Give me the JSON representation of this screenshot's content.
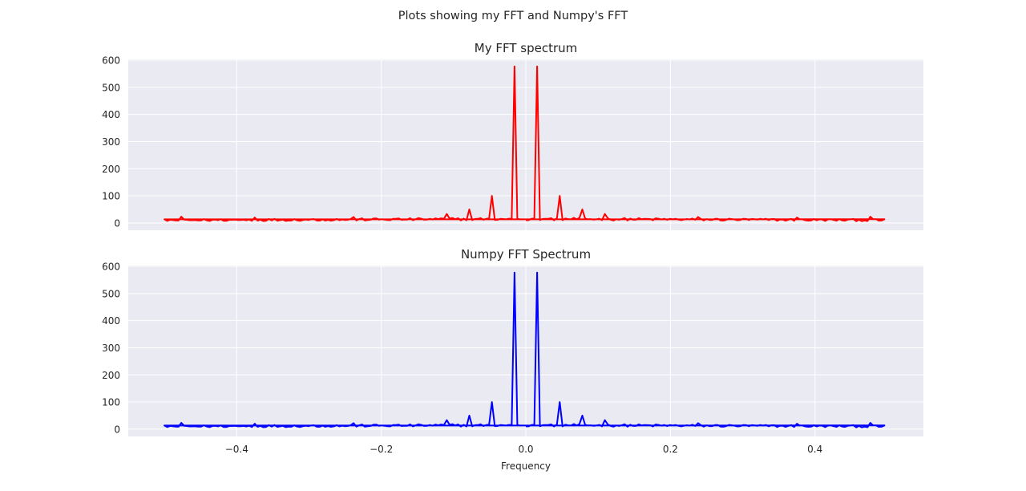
{
  "suptitle": "Plots showing my FFT and Numpy's FFT",
  "colors": {
    "axes_bg": "#eaeaf2",
    "grid": "#ffffff",
    "series_top": "#ff0000",
    "series_bottom": "#0000ff"
  },
  "chart_data": [
    {
      "type": "line",
      "title": "My FFT spectrum",
      "xlabel": "",
      "ylabel": "",
      "xlim": [
        -0.55,
        0.55
      ],
      "ylim": [
        -27,
        603
      ],
      "xticks": [
        -0.4,
        -0.2,
        0.0,
        0.2,
        0.4
      ],
      "xtick_labels": [
        "−0.4",
        "−0.2",
        "0.0",
        "0.2",
        "0.4"
      ],
      "xtick_labels_visible": false,
      "yticks": [
        0,
        100,
        200,
        300,
        400,
        500,
        600
      ],
      "ytick_labels": [
        "0",
        "100",
        "200",
        "300",
        "400",
        "500",
        "600"
      ],
      "grid": true,
      "series": [
        {
          "color": "#ff0000",
          "baseline_max_at_edge": 14,
          "baseline_min_at_edge": 6,
          "peaks": [
            {
              "x": -0.4766,
              "y": 23
            },
            {
              "x": -0.3766,
              "y": 20
            },
            {
              "x": -0.2398,
              "y": 22
            },
            {
              "x": -0.1094,
              "y": 33
            },
            {
              "x": -0.0781,
              "y": 50
            },
            {
              "x": -0.0469,
              "y": 100
            },
            {
              "x": -0.0156,
              "y": 577
            },
            {
              "x": 0.0156,
              "y": 577
            },
            {
              "x": 0.0469,
              "y": 100
            },
            {
              "x": 0.0781,
              "y": 50
            },
            {
              "x": 0.1094,
              "y": 33
            },
            {
              "x": 0.2398,
              "y": 22
            },
            {
              "x": 0.3766,
              "y": 20
            },
            {
              "x": 0.4766,
              "y": 23
            }
          ]
        }
      ]
    },
    {
      "type": "line",
      "title": "Numpy FFT Spectrum",
      "xlabel": "Frequency",
      "ylabel": "",
      "xlim": [
        -0.55,
        0.55
      ],
      "ylim": [
        -27,
        603
      ],
      "xticks": [
        -0.4,
        -0.2,
        0.0,
        0.2,
        0.4
      ],
      "xtick_labels": [
        "−0.4",
        "−0.2",
        "0.0",
        "0.2",
        "0.4"
      ],
      "xtick_labels_visible": true,
      "yticks": [
        0,
        100,
        200,
        300,
        400,
        500,
        600
      ],
      "ytick_labels": [
        "0",
        "100",
        "200",
        "300",
        "400",
        "500",
        "600"
      ],
      "grid": true,
      "series": [
        {
          "color": "#0000ff",
          "baseline_max_at_edge": 14,
          "baseline_min_at_edge": 6,
          "peaks": [
            {
              "x": -0.4766,
              "y": 23
            },
            {
              "x": -0.3766,
              "y": 20
            },
            {
              "x": -0.2398,
              "y": 22
            },
            {
              "x": -0.1094,
              "y": 33
            },
            {
              "x": -0.0781,
              "y": 50
            },
            {
              "x": -0.0469,
              "y": 100
            },
            {
              "x": -0.0156,
              "y": 577
            },
            {
              "x": 0.0156,
              "y": 577
            },
            {
              "x": 0.0469,
              "y": 100
            },
            {
              "x": 0.0781,
              "y": 50
            },
            {
              "x": 0.1094,
              "y": 33
            },
            {
              "x": 0.2398,
              "y": 22
            },
            {
              "x": 0.3766,
              "y": 20
            },
            {
              "x": 0.4766,
              "y": 23
            }
          ]
        }
      ]
    }
  ]
}
